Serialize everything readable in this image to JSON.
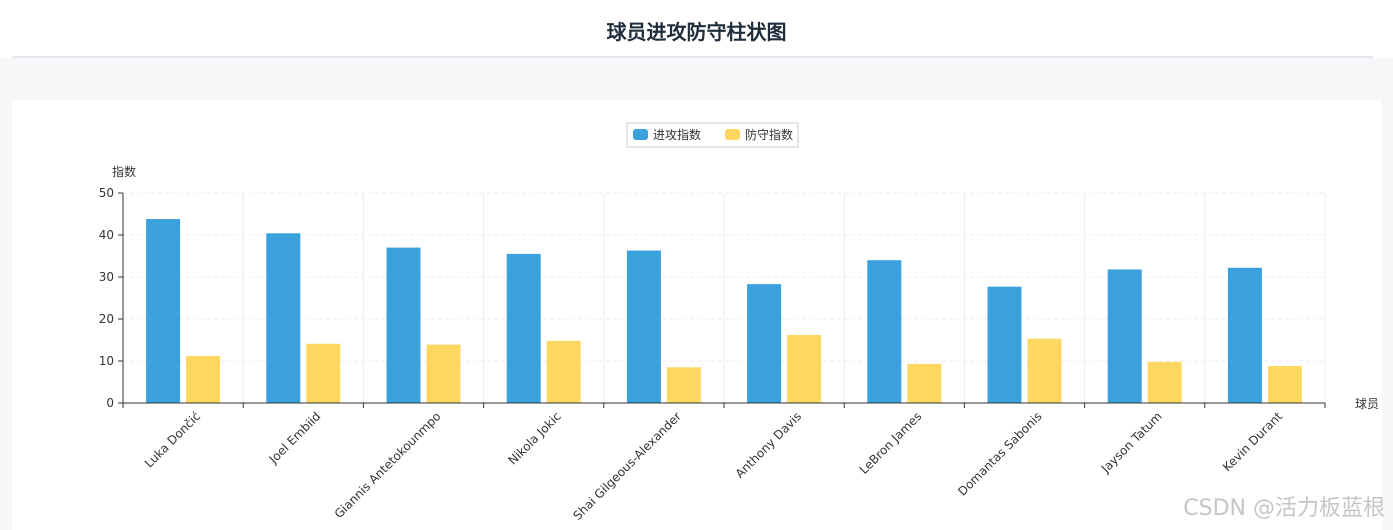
{
  "page": {
    "title": "球员进攻防守柱状图",
    "watermark": "CSDN @活力板蓝根"
  },
  "colors": {
    "attack": "#3aa1dd",
    "defense": "#fdd75f",
    "axis": "#333333",
    "grid": "#e9ecf1"
  },
  "chart_data": {
    "type": "bar",
    "title": "",
    "xlabel": "球员",
    "ylabel": "指数",
    "ylim": [
      0,
      50
    ],
    "yticks": [
      0,
      10,
      20,
      30,
      40,
      50
    ],
    "grid": true,
    "legend_position": "top-center",
    "categories": [
      "Luka Dončić",
      "Joel Embiid",
      "Giannis Antetokounmpo",
      "Nikola Jokic",
      "Shai Gilgeous-Alexander",
      "Anthony Davis",
      "LeBron James",
      "Domantas Sabonis",
      "Jayson Tatum",
      "Kevin Durant"
    ],
    "series": [
      {
        "name": "进攻指数",
        "values": [
          43.8,
          40.4,
          37.0,
          35.5,
          36.3,
          28.3,
          34.0,
          27.7,
          31.8,
          32.2
        ]
      },
      {
        "name": "防守指数",
        "values": [
          11.2,
          14.1,
          13.9,
          14.8,
          8.5,
          16.2,
          9.3,
          15.3,
          9.8,
          8.8
        ]
      }
    ]
  }
}
